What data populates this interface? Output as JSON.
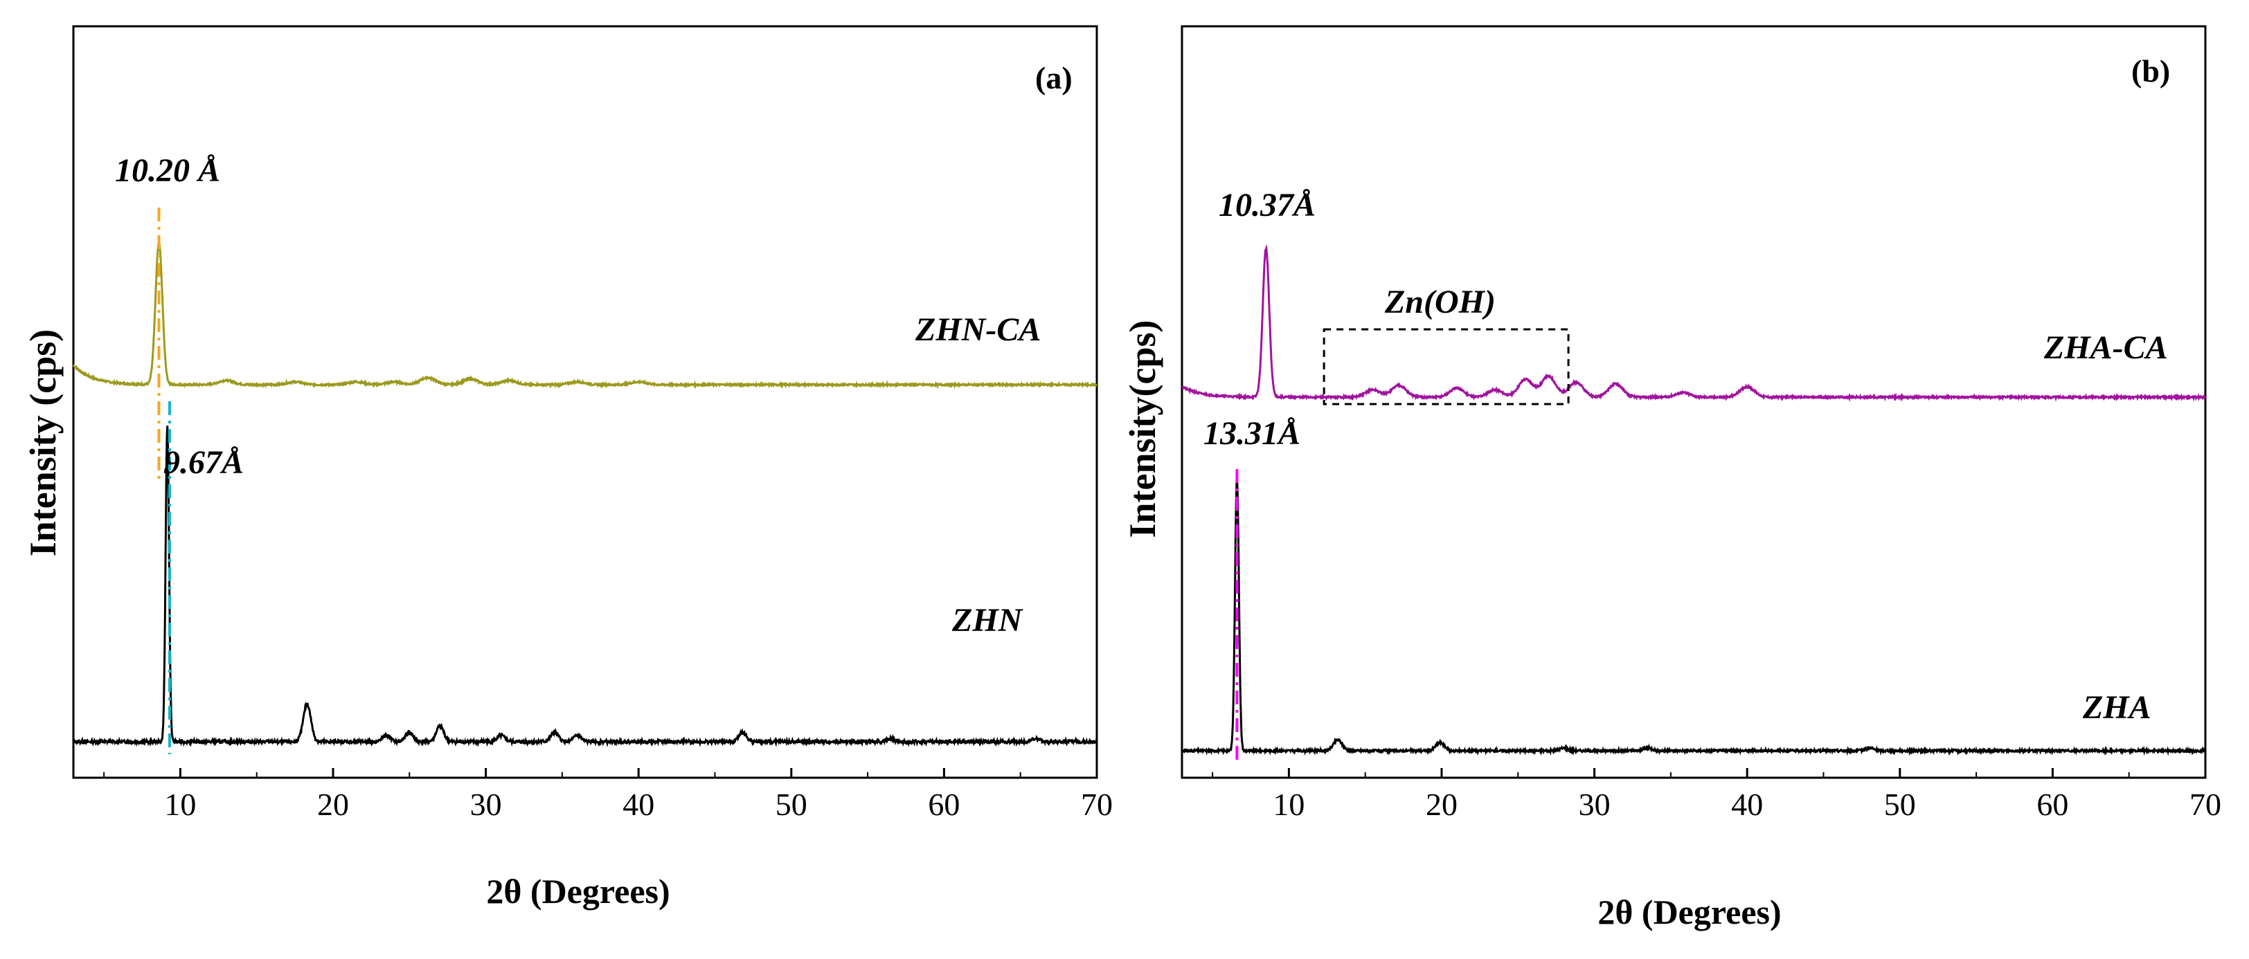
{
  "chart_data": [
    {
      "type": "line",
      "panel_label": "(a)",
      "xlabel": "2θ (Degrees)",
      "ylabel": "Intensity (cps)",
      "xlim": [
        3,
        70
      ],
      "xticks": [
        10,
        20,
        30,
        40,
        50,
        60,
        70
      ],
      "colors": {
        "ZHN-CA": "#9a9a1e",
        "ZHN": "#000000",
        "marker_upper": "#f5a623",
        "marker_lower": "#17b5c4"
      },
      "series": [
        {
          "name": "ZHN-CA",
          "peaks": [
            [
              8.6,
              100
            ],
            [
              13.0,
              3
            ],
            [
              17.5,
              2
            ],
            [
              21.5,
              2
            ],
            [
              24.0,
              2
            ],
            [
              26.2,
              5
            ],
            [
              29.0,
              4
            ],
            [
              31.5,
              3
            ],
            [
              36.0,
              2
            ],
            [
              40.0,
              2
            ]
          ]
        },
        {
          "name": "ZHN",
          "peaks": [
            [
              9.15,
              100
            ],
            [
              18.3,
              12
            ],
            [
              23.5,
              2
            ],
            [
              25.0,
              3
            ],
            [
              27.0,
              5
            ],
            [
              31.0,
              2
            ],
            [
              34.5,
              3
            ],
            [
              36.0,
              2
            ],
            [
              46.8,
              3
            ],
            [
              56.5,
              1
            ],
            [
              66.0,
              1
            ]
          ]
        }
      ],
      "annotations": {
        "upper_d": "10.20 Å",
        "lower_d": "9.67Å",
        "upper_series_label": "ZHN-CA",
        "lower_series_label": "ZHN"
      }
    },
    {
      "type": "line",
      "panel_label": "(b)",
      "xlabel": "2θ (Degrees)",
      "ylabel": "Intensity(cps)",
      "xlim": [
        3,
        70
      ],
      "xticks": [
        10,
        20,
        30,
        40,
        50,
        60,
        70
      ],
      "colors": {
        "ZHA-CA": "#a1139e",
        "ZHA": "#000000",
        "marker": "#ff00ff"
      },
      "series": [
        {
          "name": "ZHA-CA",
          "peaks": [
            [
              8.5,
              100
            ],
            [
              15.5,
              5
            ],
            [
              17.2,
              8
            ],
            [
              21.0,
              6
            ],
            [
              23.5,
              5
            ],
            [
              25.5,
              12
            ],
            [
              27.0,
              14
            ],
            [
              28.8,
              10
            ],
            [
              31.4,
              9
            ],
            [
              35.8,
              3
            ],
            [
              40.0,
              7
            ]
          ]
        },
        {
          "name": "ZHA",
          "peaks": [
            [
              6.6,
              100
            ],
            [
              13.2,
              4
            ],
            [
              19.9,
              3
            ],
            [
              28.0,
              1
            ],
            [
              33.5,
              1
            ],
            [
              48.0,
              1
            ]
          ]
        }
      ],
      "annotations": {
        "upper_d": "10.37Å",
        "lower_d": "13.31Å",
        "box_label": "Zn(OH)",
        "upper_series_label": "ZHA-CA",
        "lower_series_label": "ZHA"
      }
    }
  ]
}
